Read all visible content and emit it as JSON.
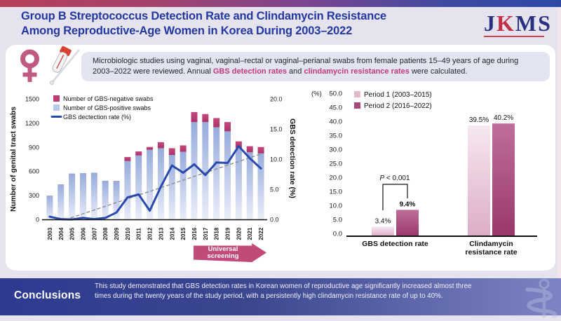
{
  "header": {
    "title_line1": "Group B Streptococcus Detection Rate and Clindamycin Resistance",
    "title_line2": "Among Reproductive-Age Women in Korea During 2003–2022",
    "logo": {
      "j": "J",
      "k": "K",
      "ms": "MS"
    }
  },
  "banner": {
    "segments": [
      {
        "text": "Microbiologic studies using vaginal, vaginal–rectal or vaginal–perianal swabs from female patients 15–49 years of age during 2003–2022 were reviewed. Annual ",
        "hl": false
      },
      {
        "text": "GBS detection rates",
        "hl": true
      },
      {
        "text": " and ",
        "hl": false
      },
      {
        "text": "clindamycin resistance rates",
        "hl": true
      },
      {
        "text": " were calculated.",
        "hl": false
      }
    ]
  },
  "conclusions": {
    "heading": "Conclusions",
    "text": "This study demonstrated that GBS detection rates in Korean women of reproductive age significantly increased almost three times during the twenty years of the study period, with a persistently high clindamycin resistance rate of up to 40%."
  },
  "chart_data": [
    {
      "type": "bar",
      "subtype": "stacked-bars-with-line",
      "categories": [
        "2003",
        "2004",
        "2005",
        "2006",
        "2007",
        "2008",
        "2009",
        "2010",
        "2011",
        "2012",
        "2013",
        "2014",
        "2015",
        "2016",
        "2017",
        "2018",
        "2019",
        "2020",
        "2021",
        "2022"
      ],
      "series": [
        {
          "name": "Number of GBS-negative swabs",
          "role": "bar-top",
          "color": "#bd3c72",
          "values": [
            0,
            0,
            0,
            0,
            0,
            0,
            5,
            50,
            50,
            35,
            75,
            85,
            80,
            125,
            100,
            115,
            115,
            80,
            75,
            80
          ]
        },
        {
          "name": "Number of GBS-positive swabs",
          "role": "bar-base",
          "color": "#b9c7e8",
          "values": [
            300,
            440,
            575,
            580,
            585,
            485,
            475,
            730,
            800,
            870,
            890,
            805,
            845,
            1215,
            1215,
            1150,
            1100,
            895,
            840,
            825
          ]
        },
        {
          "name": "GBS dectection rate (%)",
          "role": "line",
          "axis": "right",
          "color": "#2a49ad",
          "values": [
            0.5,
            0.1,
            0.05,
            0.3,
            0.1,
            0.3,
            1.2,
            3.7,
            4.2,
            1.5,
            5.5,
            9.0,
            7.8,
            9.2,
            7.4,
            9.5,
            9.4,
            12.2,
            10.2,
            8.5
          ]
        }
      ],
      "ylabel_left": "Number of genital tract swabs",
      "ylim_left": [
        0,
        1500
      ],
      "yticks_left": [
        "0",
        "300",
        "600",
        "900",
        "1200",
        "1500"
      ],
      "ylabel_right": "GBS detection rate (%)",
      "ylim_right": [
        0,
        20
      ],
      "yticks_right": [
        "0.0",
        "5.0",
        "10.0",
        "15.0",
        "20.0"
      ],
      "trendline": {
        "style": "dashed",
        "color": "#8c8c8c",
        "x_start": "2005",
        "y_start": 0,
        "x_end": "2022",
        "y_end": 10.9
      },
      "annotation_arrow": {
        "label_line1": "Universal",
        "label_line2": "screening",
        "color": "#c24a78",
        "span": "2016–2022"
      },
      "legend_position": "top-left",
      "grid": false
    },
    {
      "type": "bar",
      "subtype": "grouped-bars",
      "unit_label": "(%)",
      "categories": [
        [
          "GBS detection rate"
        ],
        [
          "Clindamycin",
          "resistance rate"
        ]
      ],
      "series": [
        {
          "name": "Period 1 (2003–2015)",
          "color": "#e3b9cd",
          "values": [
            3.4,
            39.5
          ]
        },
        {
          "name": "Period 2 (2016–2022)",
          "color": "#a8497b",
          "values": [
            9.4,
            40.2
          ]
        }
      ],
      "ylim": [
        0,
        50
      ],
      "yticks": [
        "0.0",
        "5.0",
        "10.0",
        "15.0",
        "20.0",
        "25.0",
        "30.0",
        "35.0",
        "40.0",
        "45.0",
        "50.0"
      ],
      "value_label_suffix": "%",
      "emphasized_label": "9.4%",
      "significance": {
        "label": "P < 0.001",
        "target": "GBS detection rate"
      },
      "legend_position": "top-left",
      "grid": false
    }
  ]
}
